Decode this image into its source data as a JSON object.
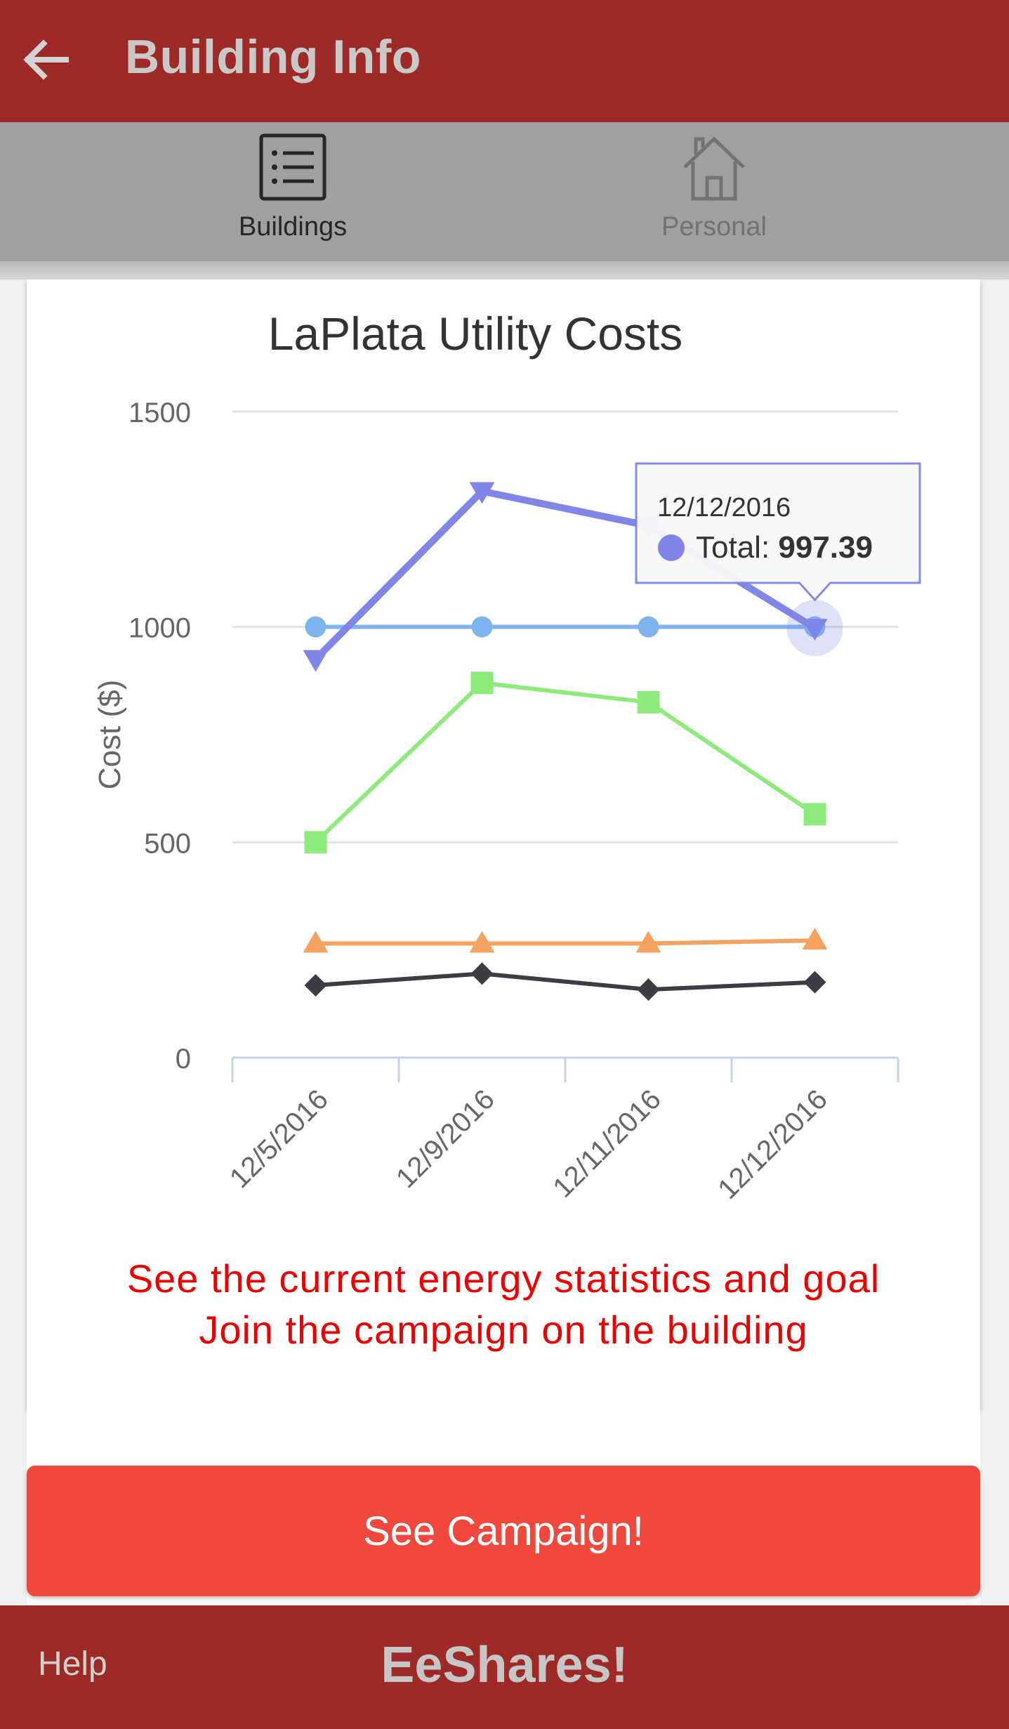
{
  "header": {
    "title": "Building Info",
    "back_icon": "arrow-left-icon"
  },
  "tabs": [
    {
      "label": "Buildings",
      "icon": "list-icon",
      "selected": true
    },
    {
      "label": "Personal",
      "icon": "home-icon",
      "selected": false
    }
  ],
  "chart_data": {
    "type": "line",
    "title": "LaPlata Utility Costs",
    "xlabel": "",
    "ylabel": "Cost ($)",
    "categories": [
      "12/5/2016",
      "12/9/2016",
      "12/11/2016",
      "12/12/2016"
    ],
    "ylim": [
      0,
      1500
    ],
    "yticks": [
      0,
      500,
      1000,
      1500
    ],
    "grid": true,
    "series": [
      {
        "name": "Total",
        "color": "#7f86e8",
        "marker": "triangle-down",
        "values": [
          925,
          1315,
          1235,
          997.39
        ]
      },
      {
        "color": "#7eb4ee",
        "marker": "circle",
        "values": [
          1000,
          1000,
          1000,
          1000
        ]
      },
      {
        "color": "#8deb7c",
        "marker": "square",
        "values": [
          500,
          870,
          825,
          565
        ]
      },
      {
        "color": "#f5a261",
        "marker": "triangle-up",
        "values": [
          265,
          265,
          265,
          272
        ]
      },
      {
        "color": "#3c3c44",
        "marker": "diamond",
        "values": [
          168,
          195,
          158,
          175
        ]
      }
    ],
    "tooltip": {
      "date": "12/12/2016",
      "series": "Total",
      "label": "Total: ",
      "value": "997.39"
    }
  },
  "messages": {
    "line1": "See the current energy statistics and goal",
    "line2": "Join the campaign on the building"
  },
  "cta": {
    "label": "See Campaign!"
  },
  "footer": {
    "help": "Help",
    "brand": "EeShares!"
  }
}
